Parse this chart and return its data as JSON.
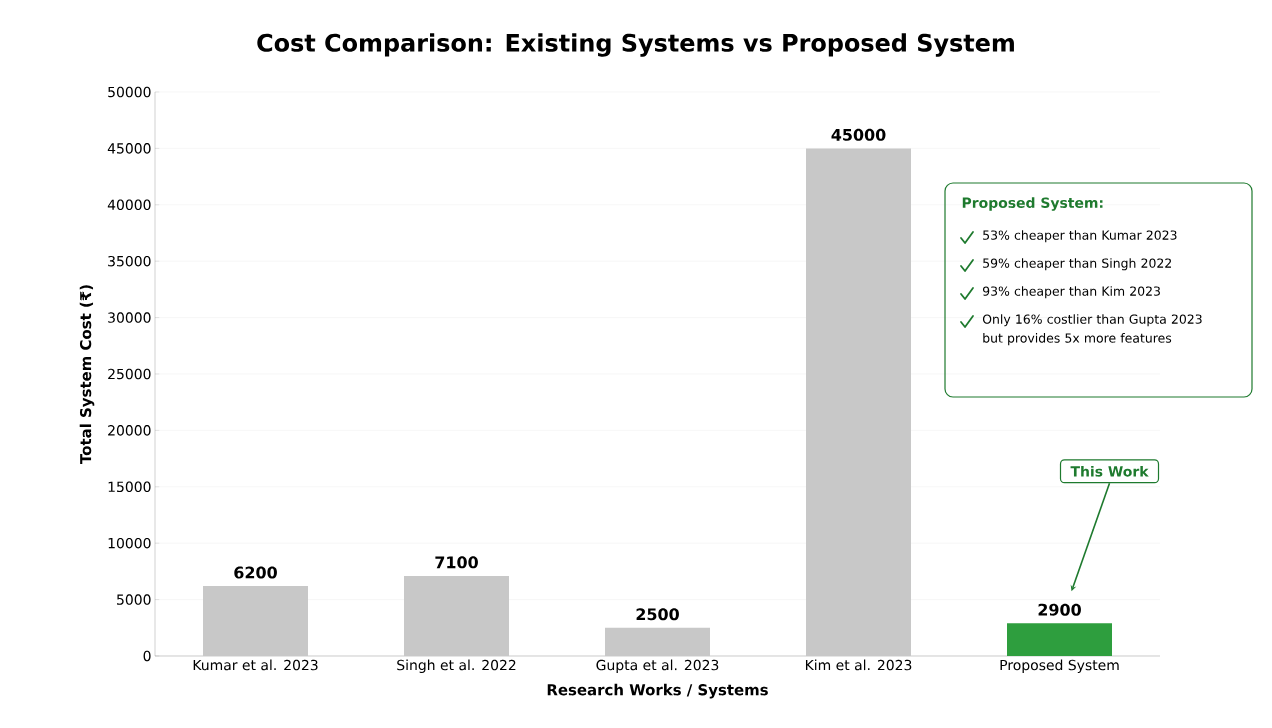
{
  "chart_data": {
    "type": "bar",
    "title": "Cost Comparison: Existing Systems vs Proposed System",
    "xlabel": "Research Works / Systems",
    "ylabel": "Total System Cost (₹)",
    "categories": [
      "Kumar et al. 2023",
      "Singh et al. 2022",
      "Gupta et al. 2023",
      "Kim et al. 2023",
      "Proposed System"
    ],
    "values": [
      6200,
      7100,
      2500,
      45000,
      2900
    ],
    "colors": [
      "#c8c8c8",
      "#c8c8c8",
      "#c8c8c8",
      "#c8c8c8",
      "#2e9e3e"
    ],
    "ylim": [
      0,
      50000
    ],
    "yticks": [
      0,
      5000,
      10000,
      15000,
      20000,
      25000,
      30000,
      35000,
      40000,
      45000,
      50000
    ],
    "grid": "y",
    "data_labels": true,
    "annotations": [
      "Proposed System:",
      "53% cheaper than Kumar 2023",
      "59% cheaper than Singh 2022",
      "93% cheaper than Kim 2023",
      "Only 16% costlier than Gupta 2023 but provides 5x more features",
      "This Work"
    ]
  }
}
